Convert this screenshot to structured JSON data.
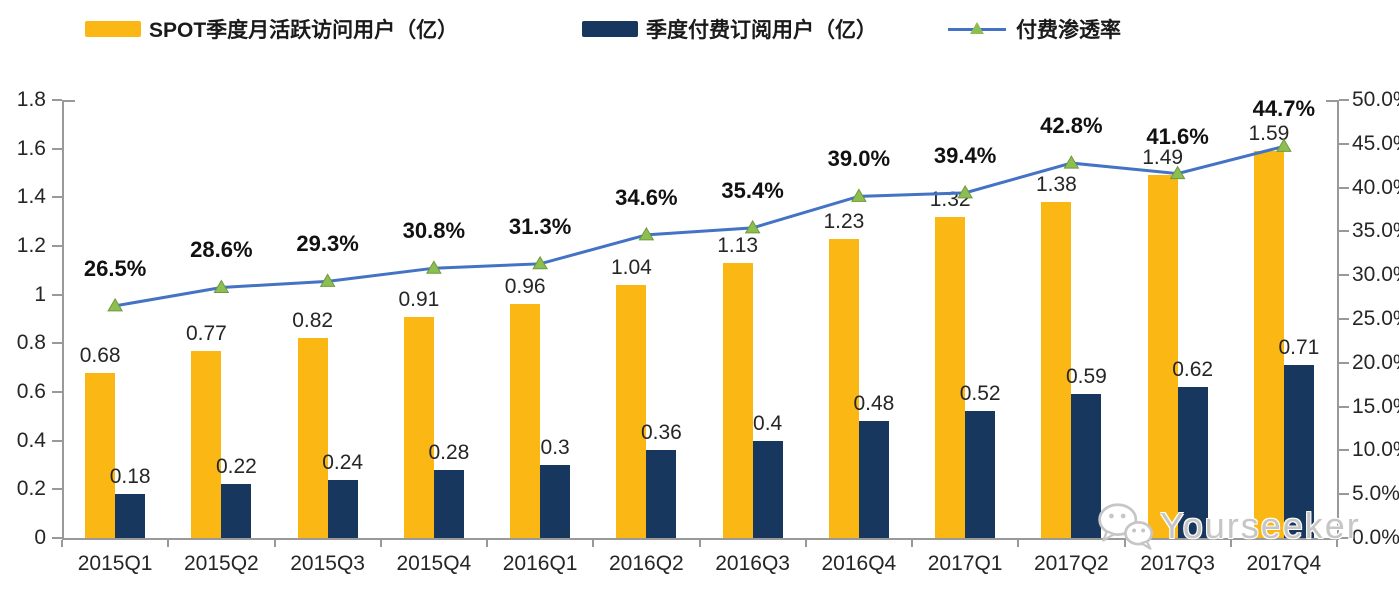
{
  "legend": {
    "items": [
      {
        "label": "SPOT季度月活跃访问用户（亿）",
        "type": "bar",
        "color": "#FBB713"
      },
      {
        "label": "季度付费订阅用户（亿）",
        "type": "bar",
        "color": "#17375E"
      },
      {
        "label": "付费渗透率",
        "type": "line",
        "color": "#4472C4",
        "marker_color": "#8CBE52"
      }
    ]
  },
  "watermark": {
    "text": "Yourseeker",
    "icon": "wechat-logo"
  },
  "chart_data": {
    "type": "combo (bar + line)",
    "categories": [
      "2015Q1",
      "2015Q2",
      "2015Q3",
      "2015Q4",
      "2016Q1",
      "2016Q2",
      "2016Q3",
      "2016Q4",
      "2017Q1",
      "2017Q2",
      "2017Q3",
      "2017Q4"
    ],
    "series": [
      {
        "name": "SPOT季度月活跃访问用户（亿）",
        "type": "bar",
        "axis": "left",
        "color": "#FBB713",
        "values": [
          0.68,
          0.77,
          0.82,
          0.91,
          0.96,
          1.04,
          1.13,
          1.23,
          1.32,
          1.38,
          1.49,
          1.59
        ],
        "labels": [
          "0.68",
          "0.77",
          "0.82",
          "0.91",
          "0.96",
          "1.04",
          "1.13",
          "1.23",
          "1.32",
          "1.38",
          "1.49",
          "1.59"
        ]
      },
      {
        "name": "季度付费订阅用户（亿）",
        "type": "bar",
        "axis": "left",
        "color": "#17375E",
        "values": [
          0.18,
          0.22,
          0.24,
          0.28,
          0.3,
          0.36,
          0.4,
          0.48,
          0.52,
          0.59,
          0.62,
          0.71
        ],
        "labels": [
          "0.18",
          "0.22",
          "0.24",
          "0.28",
          "0.3",
          "0.36",
          "0.4",
          "0.48",
          "0.52",
          "0.59",
          "0.62",
          "0.71"
        ]
      },
      {
        "name": "付费渗透率",
        "type": "line",
        "axis": "right",
        "color": "#4472C4",
        "marker": "triangle",
        "marker_color": "#8CBE52",
        "values": [
          26.5,
          28.6,
          29.3,
          30.8,
          31.3,
          34.6,
          35.4,
          39.0,
          39.4,
          42.8,
          41.6,
          44.7
        ],
        "labels": [
          "26.5%",
          "28.6%",
          "29.3%",
          "30.8%",
          "31.3%",
          "34.6%",
          "35.4%",
          "39.0%",
          "39.4%",
          "42.8%",
          "41.6%",
          "44.7%"
        ]
      }
    ],
    "left_axis": {
      "min": 0,
      "max": 1.8,
      "ticks": [
        "0",
        "0.2",
        "0.4",
        "0.6",
        "0.8",
        "1",
        "1.2",
        "1.4",
        "1.6",
        "1.8"
      ]
    },
    "right_axis": {
      "min": 0,
      "max": 50,
      "ticks": [
        "0.0%",
        "5.0%",
        "10.0%",
        "15.0%",
        "20.0%",
        "25.0%",
        "30.0%",
        "35.0%",
        "40.0%",
        "45.0%",
        "50.0%"
      ]
    },
    "grid": false,
    "legend_position": "top",
    "title": ""
  }
}
